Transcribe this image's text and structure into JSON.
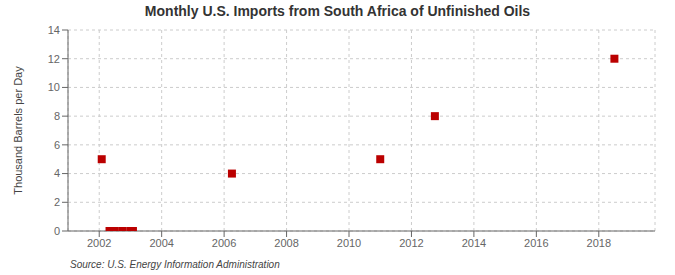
{
  "chart_data": {
    "type": "scatter",
    "title": "Monthly U.S. Imports from South Africa of Unfinished Oils",
    "ylabel": "Thousand Barrels per Day",
    "annotations": [
      "Source: U.S. Energy Information Administration"
    ],
    "x": [
      2002.08,
      2002.33,
      2002.5,
      2002.75,
      2003.0,
      2003.08,
      2006.25,
      2011.0,
      2012.75,
      2018.5
    ],
    "values": [
      5.0,
      0.0,
      0.0,
      0.0,
      0.0,
      0.0,
      4.0,
      5.0,
      8.0,
      12.0
    ],
    "color": "#bb0000",
    "marker": "square",
    "xlim": [
      2001.0,
      2019.8
    ],
    "ylim": [
      0,
      14
    ],
    "xticks": [
      2002,
      2004,
      2006,
      2008,
      2010,
      2012,
      2014,
      2016,
      2018
    ],
    "yticks": [
      0,
      2,
      4,
      6,
      8,
      10,
      12,
      14
    ],
    "grid": true
  }
}
